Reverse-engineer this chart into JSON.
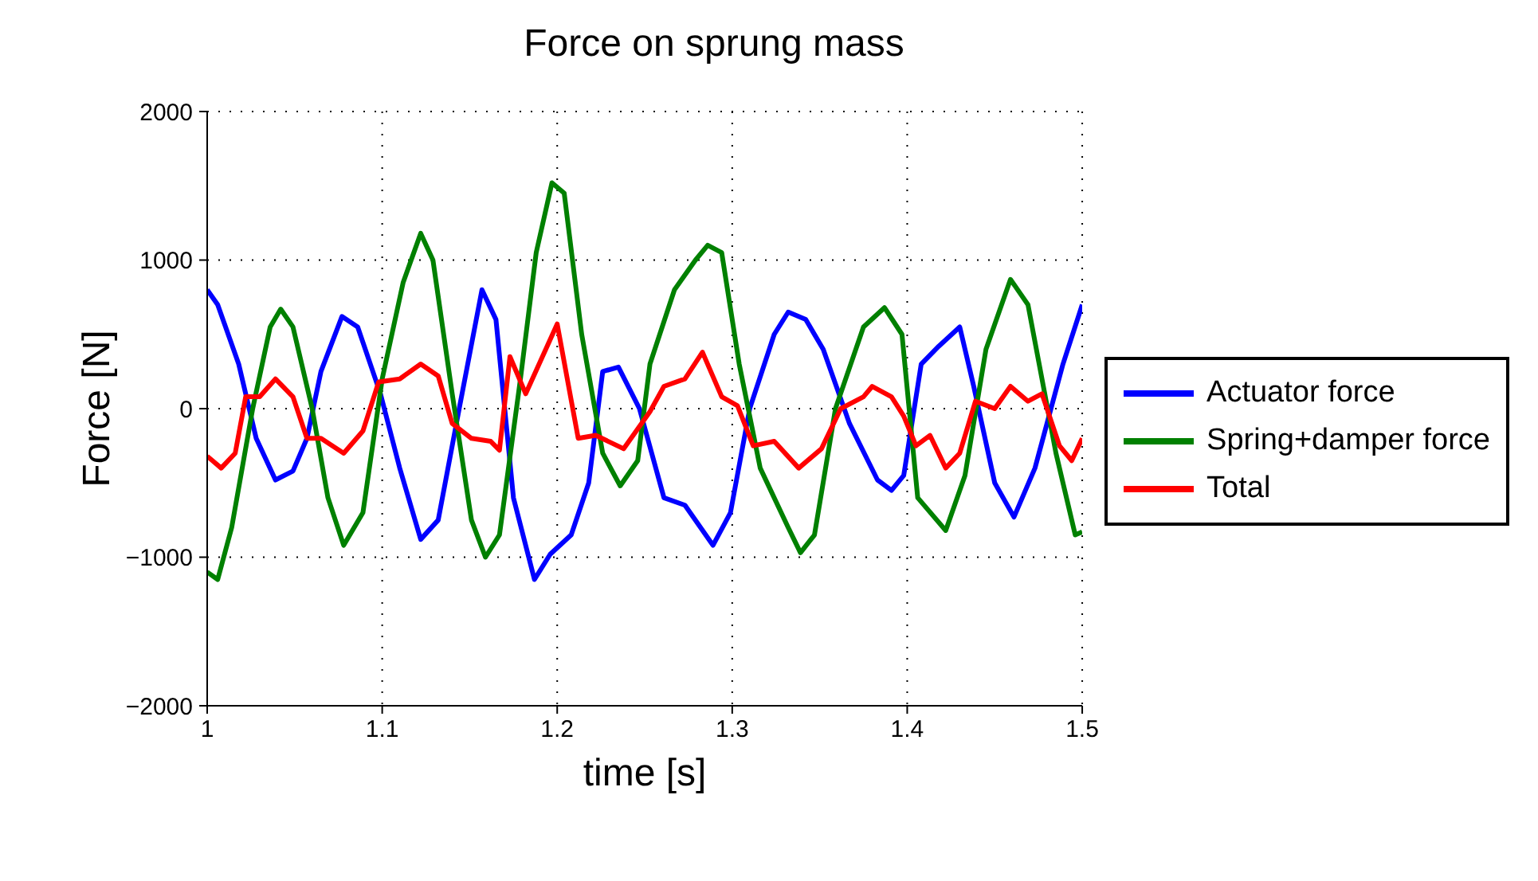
{
  "chart_data": {
    "type": "line",
    "title": "Force on sprung mass",
    "xlabel": "time [s]",
    "ylabel": "Force [N]",
    "xlim": [
      1,
      1.5
    ],
    "xticks": [
      1,
      1.1,
      1.2,
      1.3,
      1.4,
      1.5
    ],
    "ylim": [
      -2000,
      2000
    ],
    "yticks": [
      -2000,
      -1000,
      0,
      1000,
      2000
    ],
    "grid": true,
    "legend": "right",
    "marker": "none",
    "line_style": "solid",
    "series": [
      {
        "name": "Actuator force",
        "color": "#0000ff",
        "x": [
          1.0,
          1.006,
          1.018,
          1.028,
          1.039,
          1.049,
          1.057,
          1.065,
          1.077,
          1.086,
          1.099,
          1.11,
          1.122,
          1.132,
          1.144,
          1.157,
          1.165,
          1.175,
          1.187,
          1.196,
          1.208,
          1.218,
          1.226,
          1.235,
          1.247,
          1.261,
          1.273,
          1.289,
          1.299,
          1.31,
          1.324,
          1.332,
          1.342,
          1.352,
          1.367,
          1.383,
          1.391,
          1.398,
          1.408,
          1.418,
          1.43,
          1.438,
          1.45,
          1.461,
          1.473,
          1.489,
          1.5
        ],
        "values": [
          800,
          700,
          300,
          -200,
          -480,
          -420,
          -200,
          250,
          620,
          550,
          100,
          -400,
          -880,
          -750,
          0,
          800,
          600,
          -600,
          -1150,
          -980,
          -850,
          -500,
          250,
          280,
          0,
          -600,
          -650,
          -920,
          -700,
          0,
          500,
          650,
          600,
          400,
          -100,
          -480,
          -550,
          -450,
          300,
          420,
          550,
          150,
          -500,
          -730,
          -400,
          300,
          700
        ]
      },
      {
        "name": "Spring+damper force",
        "color": "#008000",
        "x": [
          1.0,
          1.006,
          1.014,
          1.026,
          1.036,
          1.042,
          1.049,
          1.06,
          1.069,
          1.078,
          1.089,
          1.1,
          1.112,
          1.122,
          1.129,
          1.14,
          1.151,
          1.159,
          1.167,
          1.179,
          1.188,
          1.197,
          1.204,
          1.214,
          1.226,
          1.236,
          1.246,
          1.253,
          1.267,
          1.279,
          1.286,
          1.294,
          1.304,
          1.316,
          1.332,
          1.339,
          1.347,
          1.359,
          1.375,
          1.387,
          1.397,
          1.406,
          1.422,
          1.433,
          1.445,
          1.459,
          1.469,
          1.485,
          1.496,
          1.5
        ],
        "values": [
          -1100,
          -1150,
          -800,
          0,
          550,
          670,
          550,
          0,
          -600,
          -920,
          -700,
          200,
          850,
          1180,
          1000,
          100,
          -750,
          -1000,
          -850,
          200,
          1050,
          1520,
          1450,
          500,
          -300,
          -520,
          -350,
          300,
          800,
          1000,
          1100,
          1050,
          300,
          -400,
          -800,
          -970,
          -850,
          0,
          550,
          680,
          500,
          -600,
          -820,
          -450,
          400,
          870,
          700,
          -300,
          -850,
          -830
        ]
      },
      {
        "name": "Total",
        "color": "#ff0000",
        "x": [
          1.0,
          1.008,
          1.016,
          1.022,
          1.03,
          1.039,
          1.049,
          1.057,
          1.065,
          1.078,
          1.089,
          1.098,
          1.11,
          1.122,
          1.132,
          1.14,
          1.151,
          1.162,
          1.167,
          1.173,
          1.182,
          1.2,
          1.212,
          1.222,
          1.238,
          1.253,
          1.261,
          1.273,
          1.283,
          1.294,
          1.303,
          1.312,
          1.324,
          1.338,
          1.351,
          1.362,
          1.375,
          1.38,
          1.391,
          1.398,
          1.405,
          1.413,
          1.422,
          1.43,
          1.439,
          1.45,
          1.459,
          1.469,
          1.477,
          1.487,
          1.494,
          1.5
        ],
        "values": [
          -320,
          -400,
          -300,
          80,
          80,
          200,
          80,
          -200,
          -200,
          -300,
          -150,
          180,
          200,
          300,
          220,
          -100,
          -200,
          -220,
          -280,
          350,
          100,
          570,
          -200,
          -180,
          -270,
          -20,
          150,
          200,
          380,
          80,
          20,
          -250,
          -220,
          -400,
          -270,
          0,
          80,
          150,
          80,
          -50,
          -250,
          -180,
          -400,
          -300,
          50,
          0,
          150,
          50,
          100,
          -250,
          -350,
          -200
        ]
      }
    ]
  }
}
